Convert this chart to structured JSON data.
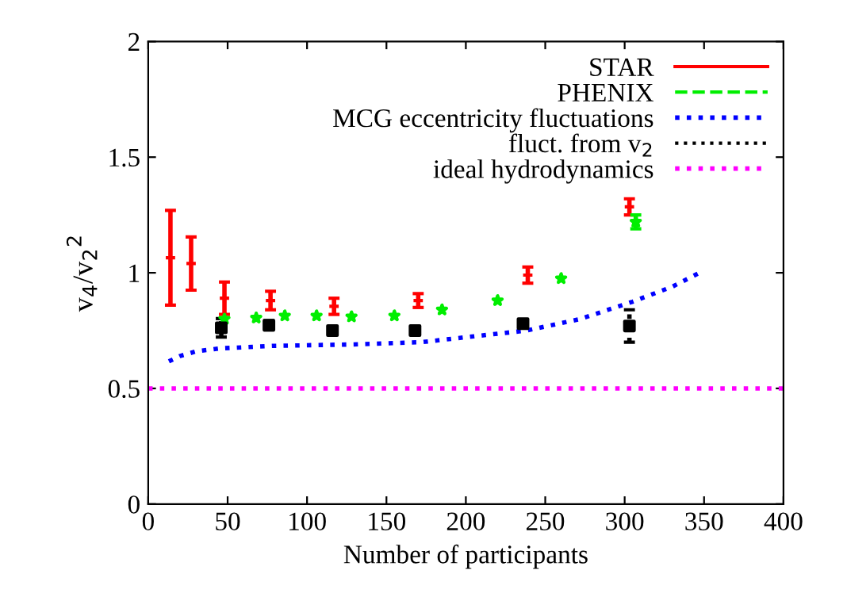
{
  "chart_data": {
    "type": "scatter",
    "xlabel": "Number of participants",
    "ylabel": "v$_{4}$/v$_{2}$$^{2}$",
    "xlim": [
      0,
      400
    ],
    "xticks": [
      0,
      50,
      100,
      150,
      200,
      250,
      300,
      350,
      400
    ],
    "ylim": [
      0,
      2
    ],
    "yticks": [
      0,
      0.5,
      1,
      1.5,
      2
    ],
    "grid": false,
    "legend": "top right",
    "series": [
      {
        "name": "STAR",
        "color": "#ff0000",
        "marker": "cross",
        "line_style": "solid",
        "x": [
          14,
          27,
          48,
          77,
          117,
          170,
          239,
          303
        ],
        "values": [
          1.065,
          1.04,
          0.89,
          0.88,
          0.855,
          0.88,
          0.99,
          1.285
        ],
        "errors": [
          0.205,
          0.115,
          0.07,
          0.04,
          0.035,
          0.03,
          0.035,
          0.035
        ]
      },
      {
        "name": "PHENIX",
        "color": "#00ee00",
        "marker": "star",
        "line_style": "dashed",
        "x": [
          48,
          68,
          86,
          106,
          128,
          155,
          185,
          220,
          260,
          307
        ],
        "values": [
          0.8,
          0.805,
          0.814,
          0.814,
          0.81,
          0.814,
          0.84,
          0.88,
          0.975,
          1.22
        ],
        "errors": [
          null,
          null,
          null,
          null,
          null,
          null,
          null,
          null,
          null,
          0.03
        ]
      },
      {
        "name": "MCG eccentricity fluctuations",
        "type": "line",
        "color": "#0000ff",
        "marker": "none",
        "line_style": "dotted",
        "x": [
          13,
          20,
          30,
          45,
          78,
          128,
          172,
          205,
          238,
          272,
          305,
          330,
          350
        ],
        "values": [
          0.617,
          0.64,
          0.66,
          0.673,
          0.684,
          0.69,
          0.7,
          0.725,
          0.75,
          0.8,
          0.875,
          0.94,
          1.01
        ]
      },
      {
        "name": "fluct. from v$_{2}$",
        "color": "#000000",
        "marker": "square",
        "line_style": "dotted",
        "x": [
          46,
          76,
          116,
          168,
          236,
          303
        ],
        "values": [
          0.762,
          0.773,
          0.75,
          0.75,
          0.78,
          0.77
        ],
        "errors": [
          0.04,
          0.02,
          null,
          null,
          null,
          0.07
        ]
      },
      {
        "name": "ideal hydrodynamics",
        "type": "line",
        "color": "#ff00ff",
        "marker": "none",
        "line_style": "dotted",
        "x": [
          0,
          400
        ],
        "values": [
          0.5,
          0.5
        ]
      }
    ]
  }
}
